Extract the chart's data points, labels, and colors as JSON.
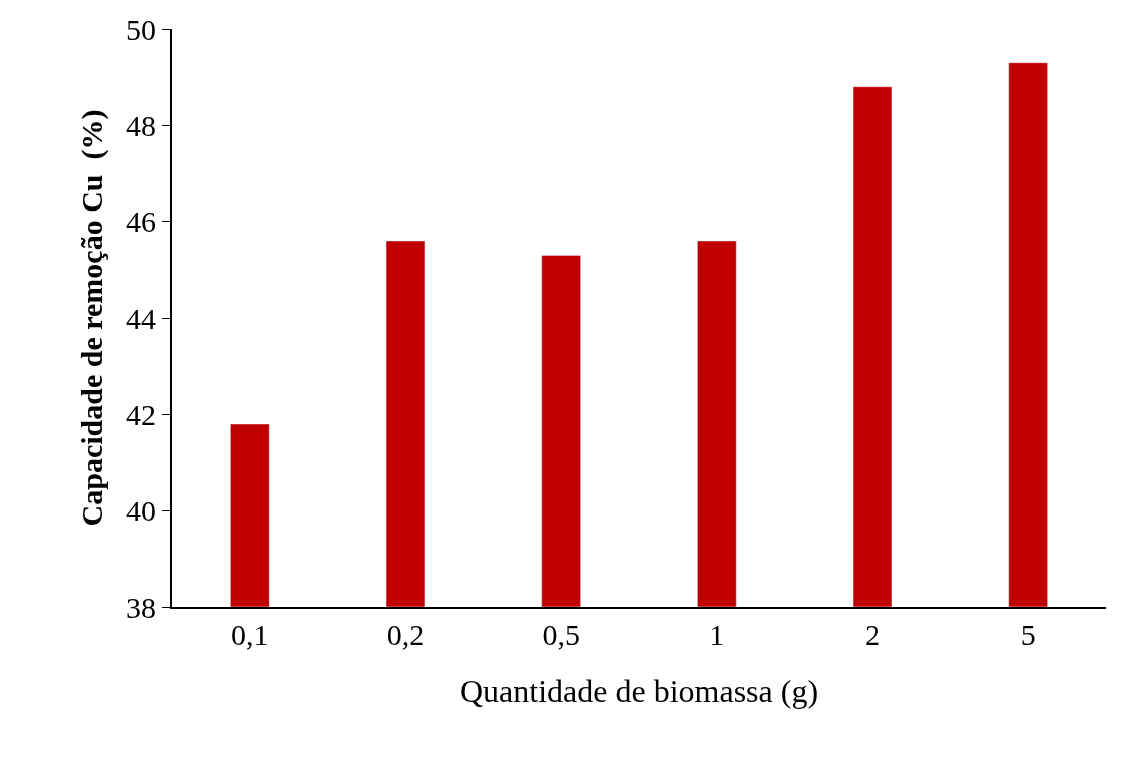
{
  "chart_data": {
    "type": "bar",
    "xlabel": "Quantidade de biomassa (g)",
    "ylabel": "Capacidade de remoção Cu  (%)",
    "categories": [
      "0,1",
      "0,2",
      "0,5",
      "1",
      "2",
      "5"
    ],
    "values": [
      41.8,
      45.6,
      45.3,
      45.6,
      48.8,
      49.3
    ],
    "color": "#c00000",
    "ylim": [
      38,
      50
    ],
    "yticks": [
      38,
      40,
      42,
      44,
      46,
      48,
      50
    ]
  }
}
